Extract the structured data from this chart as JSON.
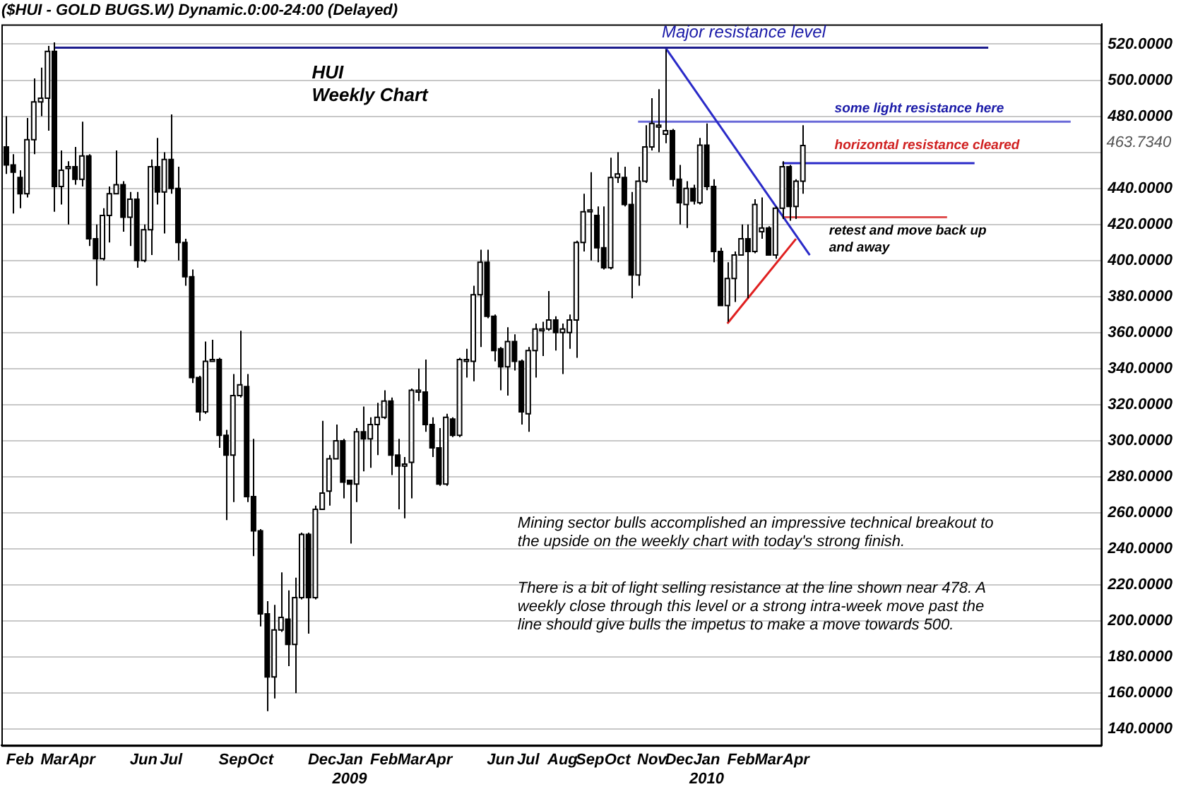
{
  "chart_data": {
    "type": "candlestick",
    "title": "($HUI - GOLD BUGS.W) Dynamic.0:00-24:00 (Delayed)",
    "colors": [
      "#000000",
      "#000000",
      "#000000",
      "#ffffff",
      "#ffffff",
      "#ffffff",
      "#ffffff",
      "#000000",
      "#ffffff",
      "#ffffff",
      "#000000",
      "#ffffff",
      "#000000",
      "#000000",
      "#ffffff",
      "#ffffff",
      "#ffffff",
      "#000000",
      "#ffffff",
      "#000000",
      "#ffffff",
      "#ffffff",
      "#000000",
      "#ffffff",
      "#000000",
      "#000000",
      "#000000",
      "#000000",
      "#000000",
      "#ffffff",
      "#ffffff",
      "#000000",
      "#000000",
      "#ffffff",
      "#ffffff",
      "#000000",
      "#000000",
      "#000000",
      "#000000",
      "#ffffff",
      "#ffffff",
      "#000000",
      "#ffffff",
      "#ffffff",
      "#000000",
      "#ffffff",
      "#ffffff",
      "#ffffff",
      "#ffffff",
      "#000000",
      "#000000",
      "#ffffff",
      "#000000",
      "#ffffff",
      "#ffffff",
      "#ffffff",
      "#000000",
      "#000000",
      "#ffffff",
      "#ffffff",
      "#ffffff",
      "#000000",
      "#000000",
      "#000000",
      "#ffffff",
      "#000000",
      "#ffffff",
      "#ffffff",
      "#ffffff",
      "#ffffff",
      "#000000",
      "#000000",
      "#000000",
      "#ffffff",
      "#000000",
      "#000000",
      "#ffffff",
      "#ffffff",
      "#ffffff",
      "#ffffff",
      "#000000",
      "#ffffff",
      "#ffffff",
      "#ffffff",
      "#ffffff",
      "#ffffff",
      "#000000",
      "#000000",
      "#ffffff",
      "#ffffff",
      "#000000",
      "#000000",
      "#ffffff",
      "#ffffff",
      "#ffffff",
      "#ffffff",
      "#ffffff",
      "#000000",
      "#000000",
      "#ffffff",
      "#000000",
      "#ffffff",
      "#000000",
      "#000000",
      "#000000",
      "#ffffff",
      "#ffffff",
      "#ffffff",
      "#000000",
      "#ffffff",
      "#ffffff",
      "#000000",
      "#ffffff",
      "#ffffff",
      "#000000",
      "#ffffff",
      "#ffffff"
    ],
    "x": [
      "2008-01-18",
      "2008-01-25",
      "2008-02-01",
      "2008-02-08",
      "2008-02-15",
      "2008-02-22",
      "2008-02-29",
      "2008-03-07",
      "2008-03-14",
      "2008-03-21",
      "2008-03-28",
      "2008-04-04",
      "2008-04-11",
      "2008-04-18",
      "2008-04-25",
      "2008-05-02",
      "2008-05-09",
      "2008-05-16",
      "2008-05-23",
      "2008-05-30",
      "2008-06-06",
      "2008-06-13",
      "2008-06-20",
      "2008-06-27",
      "2008-07-04",
      "2008-07-11",
      "2008-07-18",
      "2008-07-25",
      "2008-08-01",
      "2008-08-08",
      "2008-08-15",
      "2008-08-22",
      "2008-08-29",
      "2008-09-05",
      "2008-09-12",
      "2008-09-19",
      "2008-09-26",
      "2008-10-03",
      "2008-10-10",
      "2008-10-17",
      "2008-10-24",
      "2008-10-31",
      "2008-11-07",
      "2008-11-14",
      "2008-11-21",
      "2008-11-28",
      "2008-12-05",
      "2008-12-12",
      "2008-12-19",
      "2008-12-26",
      "2009-01-02",
      "2009-01-09",
      "2009-01-16",
      "2009-01-23",
      "2009-01-30",
      "2009-02-06",
      "2009-02-13",
      "2009-02-20",
      "2009-02-27",
      "2009-03-06",
      "2009-03-13",
      "2009-03-20",
      "2009-03-27",
      "2009-04-03",
      "2009-04-10",
      "2009-04-17",
      "2009-04-24",
      "2009-05-01",
      "2009-05-08",
      "2009-05-15",
      "2009-05-22",
      "2009-05-29",
      "2009-06-05",
      "2009-06-12",
      "2009-06-19",
      "2009-06-26",
      "2009-07-03",
      "2009-07-10",
      "2009-07-17",
      "2009-07-24",
      "2009-07-31",
      "2009-08-07",
      "2009-08-14",
      "2009-08-21",
      "2009-08-28",
      "2009-09-04",
      "2009-09-11",
      "2009-09-18",
      "2009-09-25",
      "2009-10-02",
      "2009-10-09",
      "2009-10-16",
      "2009-10-23",
      "2009-10-30",
      "2009-11-06",
      "2009-11-13",
      "2009-11-20",
      "2009-11-27",
      "2009-12-04",
      "2009-12-11",
      "2009-12-18",
      "2009-12-25",
      "2010-01-01",
      "2010-01-08",
      "2010-01-15",
      "2010-01-22",
      "2010-01-29",
      "2010-02-05",
      "2010-02-12",
      "2010-02-19",
      "2010-02-26",
      "2010-03-05",
      "2010-03-12",
      "2010-03-19",
      "2010-03-26",
      "2010-04-02",
      "2010-04-09"
    ],
    "ohlc": [
      [
        463,
        480,
        448,
        453
      ],
      [
        453,
        459,
        426,
        449
      ],
      [
        446,
        450,
        429,
        437
      ],
      [
        437,
        479,
        435,
        467
      ],
      [
        467,
        501,
        459,
        488
      ],
      [
        488,
        507,
        480,
        490
      ],
      [
        490,
        519,
        472,
        516
      ],
      [
        516,
        521,
        427,
        441
      ],
      [
        441,
        461,
        431,
        450
      ],
      [
        451,
        455,
        420,
        452
      ],
      [
        452,
        463,
        442,
        445
      ],
      [
        445,
        477,
        441,
        458
      ],
      [
        458,
        459,
        408,
        412
      ],
      [
        412,
        420,
        386,
        401
      ],
      [
        401,
        429,
        400,
        425
      ],
      [
        425,
        441,
        410,
        437
      ],
      [
        437,
        461,
        437,
        442
      ],
      [
        442,
        444,
        416,
        424
      ],
      [
        424,
        438,
        408,
        434
      ],
      [
        434,
        438,
        396,
        400
      ],
      [
        400,
        420,
        399,
        417
      ],
      [
        417,
        456,
        403,
        452
      ],
      [
        452,
        468,
        431,
        438
      ],
      [
        438,
        460,
        415,
        456
      ],
      [
        456,
        481,
        437,
        440
      ],
      [
        440,
        452,
        400,
        410
      ],
      [
        410,
        412,
        386,
        391
      ],
      [
        391,
        395,
        332,
        335
      ],
      [
        335,
        336,
        311,
        316
      ],
      [
        316,
        355,
        315,
        344
      ],
      [
        344,
        356,
        344,
        345
      ],
      [
        345,
        346,
        296,
        303
      ],
      [
        303,
        306,
        256,
        292
      ],
      [
        292,
        337,
        266,
        325
      ],
      [
        325,
        361,
        324,
        331
      ],
      [
        330,
        337,
        266,
        269
      ],
      [
        269,
        301,
        236,
        250
      ],
      [
        250,
        251,
        197,
        204
      ],
      [
        204,
        211,
        150,
        169
      ],
      [
        169,
        209,
        157,
        195
      ],
      [
        195,
        227,
        194,
        202
      ],
      [
        201,
        217,
        175,
        187
      ],
      [
        187,
        224,
        160,
        213
      ],
      [
        213,
        249,
        212,
        248
      ],
      [
        248,
        249,
        193,
        213
      ],
      [
        213,
        264,
        212,
        262
      ],
      [
        262,
        311,
        262,
        271
      ],
      [
        272,
        292,
        264,
        290
      ],
      [
        290,
        309,
        290,
        300
      ],
      [
        300,
        301,
        268,
        277
      ],
      [
        278,
        278,
        243,
        276
      ],
      [
        276,
        307,
        266,
        305
      ],
      [
        305,
        319,
        283,
        301
      ],
      [
        301,
        313,
        285,
        309
      ],
      [
        309,
        321,
        292,
        313
      ],
      [
        313,
        328,
        312,
        322
      ],
      [
        322,
        324,
        281,
        292
      ],
      [
        292,
        301,
        262,
        286
      ],
      [
        286,
        291,
        257,
        287
      ],
      [
        288,
        329,
        268,
        328
      ],
      [
        327,
        340,
        322,
        328
      ],
      [
        327,
        345,
        305,
        309
      ],
      [
        309,
        313,
        291,
        296
      ],
      [
        296,
        307,
        275,
        276
      ],
      [
        276,
        315,
        275,
        313
      ],
      [
        312,
        313,
        302,
        303
      ],
      [
        303,
        346,
        302,
        345
      ],
      [
        344,
        351,
        335,
        345
      ],
      [
        344,
        386,
        333,
        381
      ],
      [
        381,
        406,
        352,
        399
      ],
      [
        399,
        406,
        368,
        369
      ],
      [
        369,
        370,
        344,
        350
      ],
      [
        351,
        352,
        328,
        341
      ],
      [
        341,
        363,
        325,
        355
      ],
      [
        355,
        359,
        339,
        344
      ],
      [
        344,
        345,
        309,
        316
      ],
      [
        315,
        352,
        305,
        350
      ],
      [
        350,
        365,
        335,
        362
      ],
      [
        361,
        366,
        347,
        362
      ],
      [
        362,
        383,
        361,
        367
      ],
      [
        367,
        369,
        350,
        360
      ],
      [
        360,
        365,
        337,
        362
      ],
      [
        360,
        370,
        351,
        367
      ],
      [
        367,
        411,
        346,
        410
      ],
      [
        410,
        437,
        405,
        427
      ],
      [
        427,
        449,
        400,
        428
      ],
      [
        425,
        430,
        399,
        407
      ],
      [
        407,
        430,
        395,
        396
      ],
      [
        396,
        457,
        395,
        446
      ],
      [
        446,
        460,
        443,
        448
      ],
      [
        446,
        452,
        430,
        431
      ],
      [
        431,
        438,
        379,
        392
      ],
      [
        392,
        452,
        386,
        444
      ],
      [
        444,
        475,
        443,
        463
      ],
      [
        463,
        490,
        461,
        476
      ],
      [
        474,
        495,
        460,
        475
      ],
      [
        470,
        517,
        465,
        472
      ],
      [
        472,
        473,
        441,
        445
      ],
      [
        445,
        453,
        420,
        432
      ],
      [
        431,
        444,
        418,
        440
      ],
      [
        440,
        442,
        431,
        433
      ],
      [
        432,
        468,
        431,
        464
      ],
      [
        464,
        476,
        439,
        441
      ],
      [
        441,
        445,
        399,
        405
      ],
      [
        405,
        407,
        375,
        375
      ],
      [
        375,
        399,
        366,
        390
      ],
      [
        390,
        405,
        377,
        403
      ],
      [
        403,
        420,
        403,
        412
      ],
      [
        412,
        420,
        379,
        405
      ],
      [
        405,
        434,
        404,
        431
      ],
      [
        416,
        435,
        412,
        418
      ],
      [
        418,
        419,
        403,
        403
      ],
      [
        403,
        430,
        401,
        429
      ],
      [
        429,
        455,
        423,
        452
      ],
      [
        452,
        453,
        422,
        430
      ],
      [
        430,
        445,
        423,
        444
      ],
      [
        444,
        475,
        437,
        463.734
      ]
    ],
    "series": [
      {
        "type": "line",
        "color": "#1c1c8c",
        "x": [
          "2008-03-07",
          "2010-10-15"
        ],
        "values": [
          518,
          518
        ]
      },
      {
        "type": "line",
        "color": "#2a2ac8",
        "x": [
          "2009-11-20",
          "2010-04-16"
        ],
        "values": [
          518,
          403
        ]
      },
      {
        "type": "line",
        "color": "#6a6ad8",
        "x": [
          "2009-10-23",
          "2011-01-07"
        ],
        "values": [
          477,
          477
        ]
      },
      {
        "type": "line",
        "color": "#2a2ac8",
        "x": [
          "2010-03-19",
          "2010-10-01"
        ],
        "values": [
          454,
          454
        ]
      },
      {
        "type": "line",
        "color": "#e05050",
        "x": [
          "2010-03-19",
          "2010-09-03"
        ],
        "values": [
          424,
          424
        ]
      },
      {
        "type": "line",
        "color": "#e02020",
        "x": [
          "2010-01-22",
          "2010-04-02"
        ],
        "values": [
          365,
          412
        ]
      }
    ],
    "xlim": [
      "2008-01-13",
      "2011-02-08"
    ],
    "xticks": [
      {
        "value": "2008-02-01",
        "label": "Feb"
      },
      {
        "value": "2008-03-07",
        "label": "Mar"
      },
      {
        "value": "2008-04-04",
        "label": "Apr"
      },
      {
        "value": "2008-06-06",
        "label": "Jun"
      },
      {
        "value": "2008-07-04",
        "label": "Jul"
      },
      {
        "value": "2008-09-05",
        "label": "Sep"
      },
      {
        "value": "2008-10-03",
        "label": "Oct"
      },
      {
        "value": "2008-12-05",
        "label": "Dec"
      },
      {
        "value": "2009-01-02",
        "label": "Jan\n2009"
      },
      {
        "value": "2009-02-06",
        "label": "Feb"
      },
      {
        "value": "2009-03-06",
        "label": "Mar"
      },
      {
        "value": "2009-04-03",
        "label": "Apr"
      },
      {
        "value": "2009-06-05",
        "label": "Jun"
      },
      {
        "value": "2009-07-03",
        "label": "Jul"
      },
      {
        "value": "2009-08-07",
        "label": "Aug"
      },
      {
        "value": "2009-09-04",
        "label": "Sep"
      },
      {
        "value": "2009-10-02",
        "label": "Oct"
      },
      {
        "value": "2009-11-06",
        "label": "Nov"
      },
      {
        "value": "2009-12-04",
        "label": "Dec"
      },
      {
        "value": "2010-01-01",
        "label": "Jan\n2010"
      },
      {
        "value": "2010-02-05",
        "label": "Feb"
      },
      {
        "value": "2010-03-05",
        "label": "Mar"
      },
      {
        "value": "2010-04-02",
        "label": "Apr"
      }
    ],
    "ylim": [
      131,
      531
    ],
    "yticks": [
      {
        "value": 140,
        "label": "140.0000"
      },
      {
        "value": 160,
        "label": "160.0000"
      },
      {
        "value": 180,
        "label": "180.0000"
      },
      {
        "value": 200,
        "label": "200.0000"
      },
      {
        "value": 220,
        "label": "220.0000"
      },
      {
        "value": 240,
        "label": "240.0000"
      },
      {
        "value": 260,
        "label": "260.0000"
      },
      {
        "value": 280,
        "label": "280.0000"
      },
      {
        "value": 300,
        "label": "300.0000"
      },
      {
        "value": 320,
        "label": "320.0000"
      },
      {
        "value": 340,
        "label": "340.0000"
      },
      {
        "value": 360,
        "label": "360.0000"
      },
      {
        "value": 380,
        "label": "380.0000"
      },
      {
        "value": 400,
        "label": "400.0000"
      },
      {
        "value": 420,
        "label": "420.0000"
      },
      {
        "value": 440,
        "label": "440.0000"
      },
      {
        "value": 460,
        "label": null
      },
      {
        "value": 480,
        "label": "480.0000"
      },
      {
        "value": 500,
        "label": "500.0000"
      },
      {
        "value": 520,
        "label": "520.0000"
      }
    ],
    "grid": "y",
    "annotations": [
      "Major resistance level",
      "some light resistance here",
      "horizontal resistance cleared",
      "retest and move back up\nand away",
      "HUI",
      "Weekly Chart",
      "Mining sector bulls accomplished an impressive technical breakout to the upside on the weekly chart with today's strong finish.",
      "There is a bit of light selling resistance at the line shown near 478. A weekly close through this level or a strong intra-week move past the line should give bulls the impetus to make a move towards 500.",
      "463.7340"
    ]
  }
}
